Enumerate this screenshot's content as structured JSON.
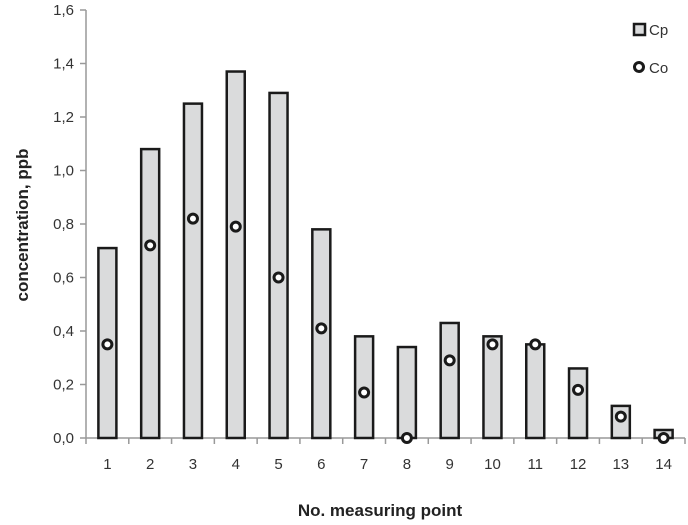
{
  "chart_data": {
    "type": "bar",
    "title": "",
    "xlabel": "No. measuring point",
    "ylabel": "concentration, ppb",
    "categories": [
      "1",
      "2",
      "3",
      "4",
      "5",
      "6",
      "7",
      "8",
      "9",
      "10",
      "11",
      "12",
      "13",
      "14"
    ],
    "series": [
      {
        "name": "Cp",
        "kind": "bar",
        "values": [
          0.71,
          1.08,
          1.25,
          1.37,
          1.29,
          0.78,
          0.38,
          0.34,
          0.43,
          0.38,
          0.35,
          0.26,
          0.12,
          0.03
        ]
      },
      {
        "name": "Co",
        "kind": "marker-circle",
        "values": [
          0.35,
          0.72,
          0.82,
          0.79,
          0.6,
          0.41,
          0.17,
          0.0,
          0.29,
          0.35,
          0.35,
          0.18,
          0.08,
          0.0
        ]
      }
    ],
    "ylim": [
      0,
      1.6
    ],
    "yticks": [
      "0,0",
      "0,2",
      "0,4",
      "0,6",
      "0,8",
      "1,0",
      "1,2",
      "1,4",
      "1,6"
    ],
    "grid": false,
    "legend_position": "top-right",
    "colors": {
      "bar_fill": "#dadbdc",
      "bar_stroke": "#1a1a1a",
      "marker_stroke": "#1a1a1a",
      "axis": "#999999"
    }
  },
  "legend": {
    "items": [
      {
        "label": "Cp"
      },
      {
        "label": "Co"
      }
    ]
  },
  "axes": {
    "xlabel": "No. measuring point",
    "ylabel": "concentration, ppb"
  }
}
